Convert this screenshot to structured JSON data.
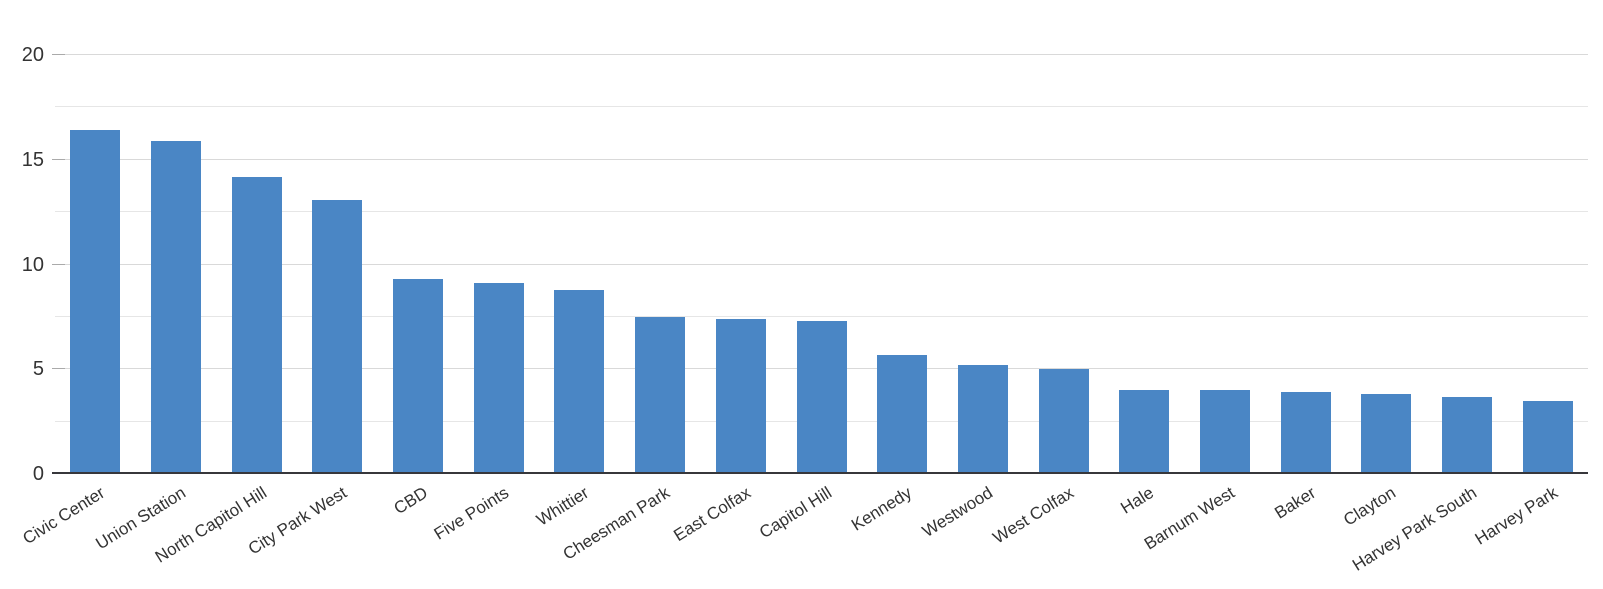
{
  "chart_data": {
    "type": "bar",
    "title": "",
    "xlabel": "",
    "ylabel": "",
    "categories": [
      "Civic Center",
      "Union Station",
      "North Capitol Hill",
      "City Park West",
      "CBD",
      "Five Points",
      "Whittier",
      "Cheesman Park",
      "East Colfax",
      "Capitol Hill",
      "Kennedy",
      "Westwood",
      "West Colfax",
      "Hale",
      "Barnum West",
      "Baker",
      "Clayton",
      "Harvey Park South",
      "Harvey Park"
    ],
    "values": [
      16.4,
      15.9,
      14.2,
      13.1,
      9.3,
      9.1,
      8.8,
      7.5,
      7.4,
      7.3,
      5.7,
      5.2,
      5.0,
      4.0,
      4.0,
      3.9,
      3.8,
      3.7,
      3.5
    ],
    "ylim": [
      0,
      20
    ],
    "yticks": [
      0,
      5,
      10,
      15,
      20
    ],
    "minor_grid_step": 2.5,
    "grid": true,
    "legend": false,
    "x_label_rotation_deg": -32,
    "colors": {
      "bar": "#4a86c5",
      "minor_gridline": "#e6e6e6",
      "major_gridline": "#d9d9d9",
      "axis_line": "#37373b",
      "tick": "#aaaaaa",
      "label": "#333333"
    }
  }
}
